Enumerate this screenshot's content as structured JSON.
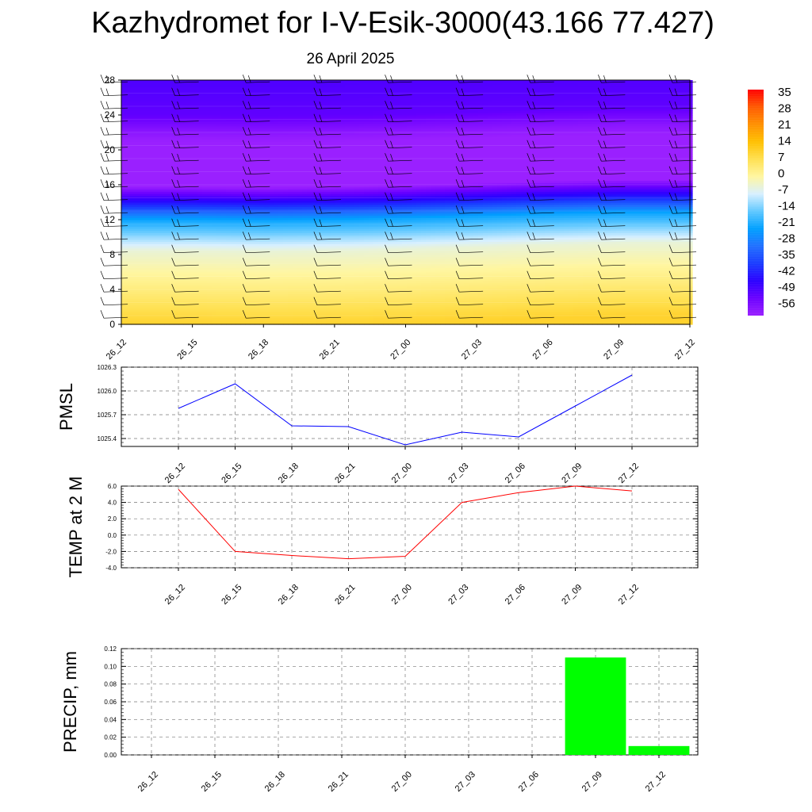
{
  "title": "Kazhydromet for I-V-Esik-3000(43.166 77.427)",
  "subtitle": "26 April 2025",
  "chart_data": [
    {
      "type": "heatmap",
      "name": "temperature-cross-section",
      "x_categories": [
        "26_12",
        "26_15",
        "26_18",
        "26_21",
        "27_00",
        "27_03",
        "27_06",
        "27_09",
        "27_12"
      ],
      "yticks": [
        0,
        4,
        8,
        12,
        16,
        20,
        24,
        28
      ],
      "ylim": [
        0,
        28
      ],
      "freezing_level": [
        8.9,
        8.9,
        8.8,
        8.9,
        9.1,
        9.4,
        9.7,
        9.9,
        9.9
      ],
      "profile": [
        {
          "z": 0,
          "t": 10
        },
        {
          "z": 4,
          "t": 3
        },
        {
          "z": 8.5,
          "t": -4
        },
        {
          "z": 12,
          "t": -20
        },
        {
          "z": 14,
          "t": -40
        },
        {
          "z": 16.5,
          "t": -62
        },
        {
          "z": 20,
          "t": -58
        },
        {
          "z": 22,
          "t": -54
        },
        {
          "z": 24,
          "t": -48
        },
        {
          "z": 28,
          "t": -46
        }
      ],
      "colorbar": {
        "labels": [
          "35",
          "28",
          "21",
          "14",
          "7",
          "0",
          "-7",
          "-14",
          "-21",
          "-28",
          "-35",
          "-42",
          "-49",
          "-56"
        ],
        "colors": [
          "#ff0000",
          "#ff5a00",
          "#ff9000",
          "#ffc000",
          "#ffe050",
          "#fff6a0",
          "#d8f0ff",
          "#60c8ff",
          "#00a0ff",
          "#2070ff",
          "#1a3cff",
          "#2a00ff",
          "#6a00ff",
          "#9a20ff"
        ]
      },
      "wind_barbs": "black"
    },
    {
      "type": "line",
      "name": "PMSL",
      "ylabel": "PMSL",
      "categories": [
        "26_12",
        "26_15",
        "26_18",
        "26_21",
        "27_00",
        "27_03",
        "27_06",
        "27_09",
        "27_12"
      ],
      "values": [
        1025.78,
        1026.09,
        1025.56,
        1025.55,
        1025.32,
        1025.48,
        1025.42,
        1025.81,
        1026.2
      ],
      "yticks": [
        "1025.4",
        "1025.7",
        "1026.0",
        "1026.3"
      ],
      "ylim": [
        1025.3,
        1026.3
      ],
      "color": "#0000ff",
      "grid": true
    },
    {
      "type": "line",
      "name": "TEMP at 2 M",
      "ylabel": "TEMP at 2 M",
      "categories": [
        "26_12",
        "26_15",
        "26_18",
        "26_21",
        "27_00",
        "27_03",
        "27_06",
        "27_09",
        "27_12"
      ],
      "values": [
        5.6,
        -2.0,
        -2.5,
        -2.9,
        -2.6,
        4.0,
        5.2,
        6.0,
        5.4
      ],
      "yticks": [
        "-4.0",
        "-2.0",
        "0.0",
        "2.0",
        "4.0",
        "6.0"
      ],
      "ylim": [
        -4,
        6
      ],
      "color": "#ff0000",
      "grid": true
    },
    {
      "type": "bar",
      "name": "PRECIP, mm",
      "ylabel": "PRECIP, mm",
      "categories": [
        "26_12",
        "26_15",
        "26_18",
        "26_21",
        "27_00",
        "27_03",
        "27_06",
        "27_09",
        "27_12"
      ],
      "values": [
        0,
        0,
        0,
        0,
        0,
        0,
        0,
        0.11,
        0.01
      ],
      "yticks": [
        "0.00",
        "0.02",
        "0.04",
        "0.06",
        "0.08",
        "0.10",
        "0.12"
      ],
      "ylim": [
        0,
        0.12
      ],
      "color": "#00ff00",
      "grid": true
    }
  ]
}
